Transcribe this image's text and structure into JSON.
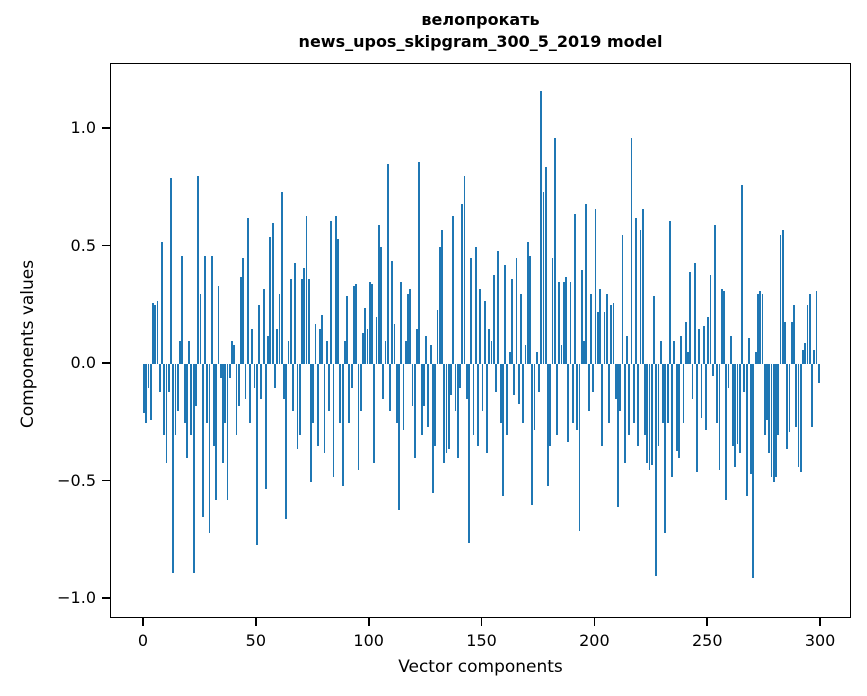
{
  "title": {
    "line1": "велопрокать",
    "line2": "news_upos_skipgram_300_5_2019 model"
  },
  "chart_data": {
    "type": "bar",
    "title": "велопрокать\nnews_upos_skipgram_300_5_2019 model",
    "xlabel": "Vector components",
    "ylabel": "Components values",
    "bar_color": "#1f77b4",
    "n_components": 300,
    "xlim": [
      -14.95,
      313.95
    ],
    "ylim": [
      -1.085,
      1.277
    ],
    "grid": false,
    "legend": "none",
    "x_ticks": [
      0,
      50,
      100,
      150,
      200,
      250,
      300
    ],
    "x_tick_labels": [
      "0",
      "50",
      "100",
      "150",
      "200",
      "250",
      "300"
    ],
    "y_ticks": [
      1.0,
      0.5,
      0.0,
      -0.5,
      -1.0
    ],
    "y_tick_labels": [
      "1.0",
      "0.5",
      "0.0",
      "−0.5",
      "−1.0"
    ],
    "values": [
      -0.21,
      -0.25,
      -0.1,
      -0.24,
      0.26,
      0.25,
      0.27,
      -0.12,
      0.52,
      -0.3,
      -0.42,
      -0.12,
      0.79,
      -0.89,
      -0.3,
      -0.2,
      0.1,
      0.46,
      -0.25,
      -0.4,
      0.1,
      -0.3,
      -0.89,
      -0.18,
      0.8,
      0.3,
      -0.65,
      0.46,
      -0.25,
      -0.72,
      0.46,
      -0.35,
      -0.58,
      0.33,
      -0.06,
      -0.42,
      -0.25,
      -0.58,
      -0.06,
      0.1,
      0.08,
      -0.3,
      -0.18,
      0.37,
      0.45,
      -0.15,
      0.62,
      -0.25,
      0.15,
      -0.1,
      -0.77,
      0.25,
      -0.15,
      0.32,
      -0.53,
      0.12,
      0.54,
      0.6,
      -0.1,
      0.15,
      0.3,
      0.73,
      -0.15,
      -0.66,
      0.1,
      0.36,
      -0.2,
      0.43,
      -0.36,
      -0.3,
      0.36,
      0.41,
      0.63,
      0.36,
      -0.5,
      -0.25,
      0.17,
      -0.35,
      0.15,
      0.21,
      -0.38,
      0.1,
      -0.2,
      0.61,
      -0.48,
      0.63,
      0.53,
      -0.25,
      -0.52,
      0.1,
      0.29,
      -0.25,
      -0.1,
      0.33,
      0.34,
      -0.45,
      -0.2,
      0.13,
      0.24,
      0.15,
      0.35,
      0.34,
      -0.42,
      0.2,
      0.59,
      0.5,
      -0.15,
      0.1,
      0.85,
      -0.2,
      0.44,
      0.17,
      -0.25,
      -0.62,
      0.35,
      -0.28,
      0.1,
      0.3,
      0.32,
      -0.18,
      -0.4,
      0.15,
      0.86,
      -0.3,
      -0.18,
      0.12,
      -0.27,
      0.08,
      -0.55,
      -0.35,
      0.23,
      0.5,
      0.57,
      -0.42,
      -0.38,
      -0.36,
      -0.13,
      0.63,
      -0.2,
      -0.4,
      -0.1,
      0.68,
      0.8,
      -0.15,
      -0.76,
      0.45,
      -0.3,
      0.5,
      -0.35,
      0.32,
      -0.2,
      0.27,
      -0.38,
      0.15,
      0.1,
      0.38,
      -0.12,
      0.48,
      -0.25,
      -0.56,
      0.42,
      -0.3,
      0.05,
      0.36,
      -0.13,
      0.45,
      -0.17,
      0.3,
      -0.25,
      0.08,
      0.52,
      0.46,
      -0.6,
      -0.28,
      0.05,
      -0.12,
      1.16,
      0.73,
      0.84,
      -0.52,
      -0.35,
      0.45,
      0.96,
      -0.3,
      0.35,
      0.08,
      0.35,
      0.37,
      -0.33,
      0.35,
      -0.25,
      0.64,
      -0.28,
      -0.71,
      0.4,
      0.1,
      0.68,
      -0.2,
      0.3,
      -0.12,
      0.66,
      0.22,
      0.32,
      -0.35,
      0.22,
      0.3,
      -0.25,
      0.25,
      0.26,
      -0.15,
      -0.61,
      -0.2,
      0.55,
      -0.42,
      0.12,
      -0.3,
      0.96,
      -0.25,
      0.62,
      -0.35,
      0.57,
      0.66,
      -0.3,
      -0.42,
      -0.45,
      -0.43,
      0.29,
      -0.9,
      -0.35,
      0.1,
      -0.25,
      -0.72,
      -0.25,
      0.61,
      -0.48,
      0.1,
      -0.37,
      -0.4,
      0.12,
      -0.25,
      0.18,
      0.05,
      0.39,
      -0.15,
      0.43,
      -0.46,
      0.15,
      -0.23,
      0.16,
      -0.28,
      0.2,
      0.38,
      -0.05,
      0.59,
      -0.25,
      -0.45,
      0.32,
      0.31,
      -0.58,
      -0.1,
      0.12,
      -0.35,
      -0.44,
      -0.34,
      -0.38,
      0.76,
      -0.12,
      -0.56,
      0.11,
      -0.47,
      -0.91,
      0.05,
      0.3,
      0.31,
      0.3,
      -0.3,
      -0.24,
      -0.38,
      -0.48,
      -0.5,
      -0.48,
      -0.3,
      0.55,
      0.57,
      0.18,
      -0.36,
      -0.29,
      0.18,
      0.25,
      -0.27,
      -0.44,
      -0.46,
      0.06,
      0.09,
      0.25,
      0.3,
      -0.27,
      0.06,
      0.31,
      -0.08
    ]
  }
}
